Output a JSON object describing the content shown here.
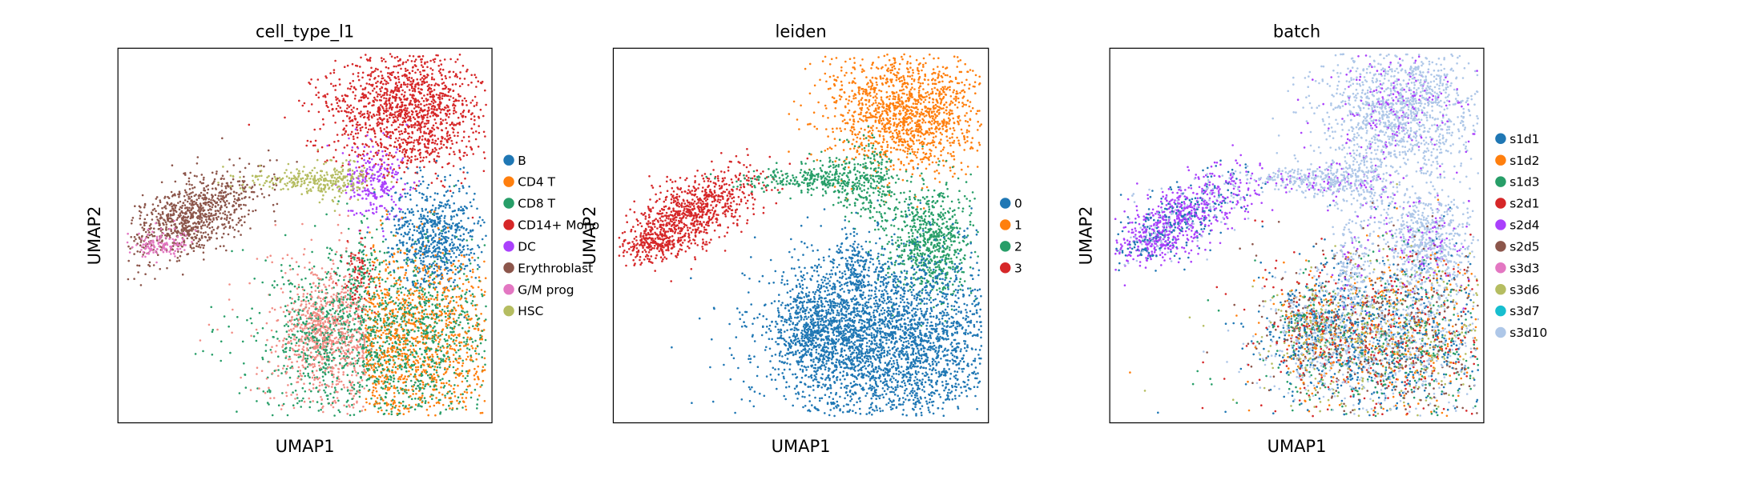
{
  "chart_data": [
    {
      "type": "scatter",
      "title": "cell_type_l1",
      "xlabel": "UMAP1",
      "ylabel": "UMAP2",
      "grid": false,
      "legend_position": "right-outside",
      "series": [
        {
          "name": "B",
          "color": "#1f77b4"
        },
        {
          "name": "CD4 T",
          "color": "#ff7f0e"
        },
        {
          "name": "CD8 T",
          "color": "#279e68"
        },
        {
          "name": "CD14+ Mono",
          "color": "#d62728"
        },
        {
          "name": "DC",
          "color": "#aa40fc"
        },
        {
          "name": "Erythroblast",
          "color": "#8c564b"
        },
        {
          "name": "G/M prog",
          "color": "#e377c2"
        },
        {
          "name": "HSC",
          "color": "#b5bd61"
        }
      ]
    },
    {
      "type": "scatter",
      "title": "leiden",
      "xlabel": "UMAP1",
      "ylabel": "UMAP2",
      "grid": false,
      "legend_position": "right-outside",
      "series": [
        {
          "name": "0",
          "color": "#1f77b4"
        },
        {
          "name": "1",
          "color": "#ff7f0e"
        },
        {
          "name": "2",
          "color": "#279e68"
        },
        {
          "name": "3",
          "color": "#d62728"
        }
      ]
    },
    {
      "type": "scatter",
      "title": "batch",
      "xlabel": "UMAP1",
      "ylabel": "UMAP2",
      "grid": false,
      "legend_position": "right-outside",
      "series": [
        {
          "name": "s1d1",
          "color": "#1f77b4"
        },
        {
          "name": "s1d2",
          "color": "#ff7f0e"
        },
        {
          "name": "s1d3",
          "color": "#279e68"
        },
        {
          "name": "s2d1",
          "color": "#d62728"
        },
        {
          "name": "s2d4",
          "color": "#aa40fc"
        },
        {
          "name": "s2d5",
          "color": "#8c564b"
        },
        {
          "name": "s3d3",
          "color": "#e377c2"
        },
        {
          "name": "s3d6",
          "color": "#b5bd61"
        },
        {
          "name": "s3d7",
          "color": "#17becf"
        },
        {
          "name": "s3d10",
          "color": "#aec7e8"
        }
      ]
    }
  ]
}
